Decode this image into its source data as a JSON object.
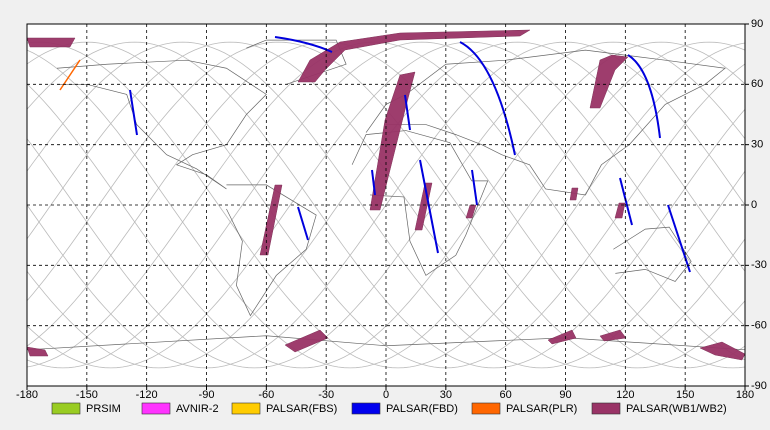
{
  "chart_data": {
    "type": "map",
    "xlim": [
      -180,
      180
    ],
    "ylim": [
      -90,
      90
    ],
    "xticks": [
      -180,
      -150,
      -120,
      -90,
      -60,
      -30,
      0,
      30,
      60,
      90,
      120,
      150,
      180
    ],
    "yticks": [
      90,
      60,
      30,
      0,
      -30,
      -60,
      -90
    ],
    "grid": true,
    "series": [
      {
        "name": "PRSIM",
        "color": "#99cc22"
      },
      {
        "name": "AVNIR-2",
        "color": "#ff33ff"
      },
      {
        "name": "PALSAR(FBS)",
        "color": "#ffcc00"
      },
      {
        "name": "PALSAR(FBD)",
        "color": "#0000ee"
      },
      {
        "name": "PALSAR(PLR)",
        "color": "#ff6600"
      },
      {
        "name": "PALSAR(WB1/WB2)",
        "color": "#993366"
      }
    ]
  }
}
